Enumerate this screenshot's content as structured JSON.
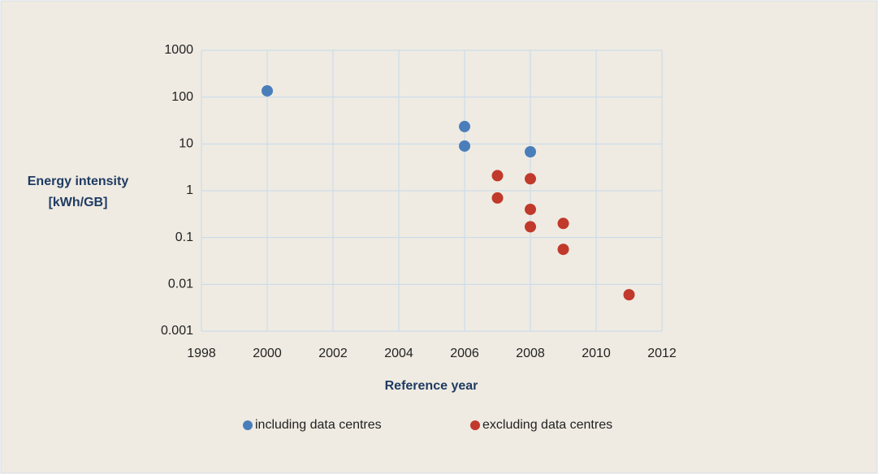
{
  "chart_data": {
    "type": "scatter",
    "log_y": true,
    "grid": true,
    "y_label": [
      "Energy intensity",
      "[kWh/GB]"
    ],
    "x_label": "Reference year",
    "xlim": [
      1998,
      2012
    ],
    "xticks": [
      1998,
      2000,
      2002,
      2004,
      2006,
      2008,
      2010,
      2012
    ],
    "ylim": [
      0.001,
      1000
    ],
    "yticks": [
      0.001,
      0.01,
      0.1,
      1,
      10,
      100,
      1000
    ],
    "legend": "bottom",
    "series": [
      {
        "name": "including data centres",
        "color": "#4a7ebb",
        "x": [
          2000,
          2006,
          2006,
          2008
        ],
        "values": [
          136,
          23.5,
          9,
          6.8
        ]
      },
      {
        "name": "excluding data centres",
        "color": "#c0392b",
        "x": [
          2007,
          2007,
          2008,
          2008,
          2008,
          2009,
          2009,
          2011
        ],
        "values": [
          2.1,
          0.7,
          1.8,
          0.4,
          0.17,
          0.2,
          0.056,
          0.006
        ]
      }
    ]
  }
}
